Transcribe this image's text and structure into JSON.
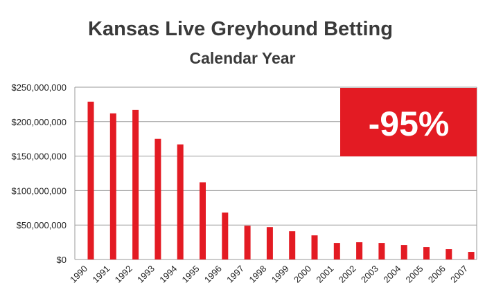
{
  "chart_data": {
    "type": "bar",
    "title": "Kansas Live Greyhound Betting",
    "subtitle": "Calendar Year",
    "categories": [
      "1990",
      "1991",
      "1992",
      "1993",
      "1994",
      "1995",
      "1996",
      "1997",
      "1998",
      "1999",
      "2000",
      "2001",
      "2002",
      "2003",
      "2004",
      "2005",
      "2006",
      "2007"
    ],
    "values": [
      229000000,
      212000000,
      217000000,
      175000000,
      167000000,
      112000000,
      68000000,
      49000000,
      47000000,
      41000000,
      35000000,
      24000000,
      25000000,
      24000000,
      21000000,
      18000000,
      15000000,
      11000000
    ],
    "ylim": [
      0,
      250000000
    ],
    "y_ticks": [
      0,
      50000000,
      100000000,
      150000000,
      200000000,
      250000000
    ],
    "y_tick_labels": [
      "$0",
      "$50,000,000",
      "$100,000,000",
      "$150,000,000",
      "$200,000,000",
      "$250,000,000"
    ],
    "grid": true,
    "bar_color": "#e31b23",
    "annotation": {
      "text": "-95%",
      "background": "#e31b23",
      "position": "top-right"
    }
  }
}
